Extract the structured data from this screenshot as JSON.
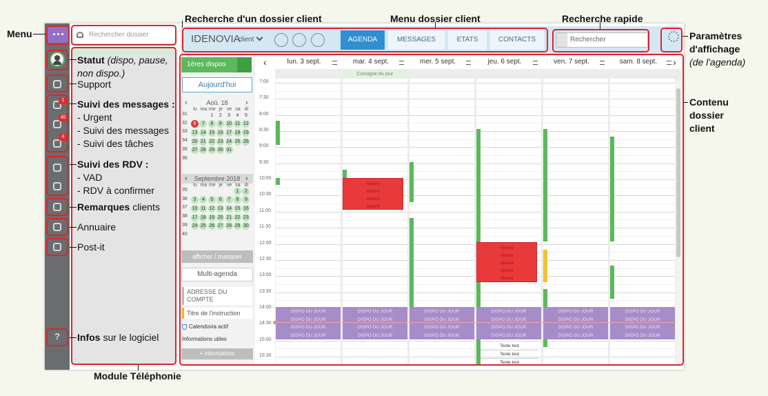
{
  "annotations": {
    "menu": "Menu",
    "search_client": "Recherche d'un dossier client",
    "client_menu": "Menu dossier client",
    "quick_search": "Recherche rapide",
    "display_settings": {
      "title": "Paramètres d'affichage",
      "note": "(de l'agenda)"
    },
    "content": "Contenu dossier client",
    "status": {
      "title": "Statut",
      "note": "(dispo, pause, non dispo.)"
    },
    "support": "Support",
    "messages": {
      "title": "Suivi des messages :",
      "items": [
        "- Urgent",
        "- Suivi des messages",
        "- Suivi des tâches"
      ]
    },
    "appointments": {
      "title": "Suivi des RDV :",
      "items": [
        "- VAD",
        "- RDV à confirmer"
      ]
    },
    "remarks": {
      "title": "Remarques",
      "rest": "clients"
    },
    "directory": "Annuaire",
    "postit": "Post-it",
    "info": {
      "title": "Infos",
      "rest": "sur le logiciel"
    },
    "telephony": "Module Téléphonie"
  },
  "sidebar": {
    "badges": [
      1,
      40,
      4
    ]
  },
  "telephony": {
    "search_placeholder": "Rechercher dossier"
  },
  "header": {
    "company": "IDENOVIA",
    "type": "client",
    "tabs": [
      "AGENDA",
      "MESSAGES",
      "ETATS",
      "CONTACTS"
    ],
    "search_placeholder": "Rechercher"
  },
  "left_panel": {
    "first_dispos": "1ères dispos",
    "today": "Aujourd'hui",
    "weekdays": [
      "lu",
      "ma",
      "me",
      "je",
      "ve",
      "sa",
      "di"
    ],
    "calendars": [
      {
        "title": "Aoû. 18",
        "rows": [
          {
            "week": 31,
            "days": [
              null,
              null,
              1,
              2,
              3,
              4,
              5
            ]
          },
          {
            "week": 32,
            "days": [
              6,
              7,
              8,
              9,
              10,
              11,
              12
            ]
          },
          {
            "week": 33,
            "days": [
              13,
              14,
              15,
              16,
              17,
              18,
              19
            ]
          },
          {
            "week": 34,
            "days": [
              20,
              21,
              22,
              23,
              24,
              25,
              26
            ]
          },
          {
            "week": 35,
            "days": [
              27,
              28,
              29,
              30,
              31,
              null,
              null
            ]
          },
          {
            "week": 36,
            "days": [
              null,
              null,
              null,
              null,
              null,
              null,
              null
            ]
          }
        ]
      },
      {
        "title": "Septembre 2018",
        "rows": [
          {
            "week": 35,
            "days": [
              null,
              null,
              null,
              null,
              null,
              1,
              2
            ]
          },
          {
            "week": 36,
            "days": [
              3,
              4,
              5,
              6,
              7,
              8,
              9
            ]
          },
          {
            "week": 37,
            "days": [
              10,
              11,
              12,
              13,
              14,
              15,
              16
            ]
          },
          {
            "week": 38,
            "days": [
              17,
              18,
              19,
              20,
              21,
              22,
              23
            ]
          },
          {
            "week": 39,
            "days": [
              24,
              25,
              26,
              27,
              28,
              29,
              30
            ]
          },
          {
            "week": 40,
            "days": [
              null,
              null,
              null,
              null,
              null,
              null,
              null
            ]
          }
        ]
      }
    ],
    "toggle": "afficher / masquer",
    "multi": "Multi-agenda",
    "address": "ADRESSE DU COMPTE",
    "instruction": "Titre de l'instruction",
    "calendovia": "Calendovia actif",
    "useful_info": "Informations utiles",
    "more_info": "+ informations"
  },
  "agenda": {
    "days": [
      "lun. 3 sept.",
      "mar. 4 sept.",
      "mer. 5 sept.",
      "jeu. 6 sept.",
      "ven. 7 sept.",
      "sam. 8 sept."
    ],
    "times": [
      "7:00",
      "7:30",
      "8:00",
      "8:30",
      "9:00",
      "9:30",
      "10:00",
      "10:30",
      "11:00",
      "11:30",
      "12:00",
      "12:30",
      "13:00",
      "13:30",
      "14:00",
      "14:30",
      "15:00",
      "15:30"
    ],
    "consigne": "Consigne du jour",
    "dispo": "DISPO DU JOUR",
    "absent": "Absent",
    "test": "Texte test"
  }
}
